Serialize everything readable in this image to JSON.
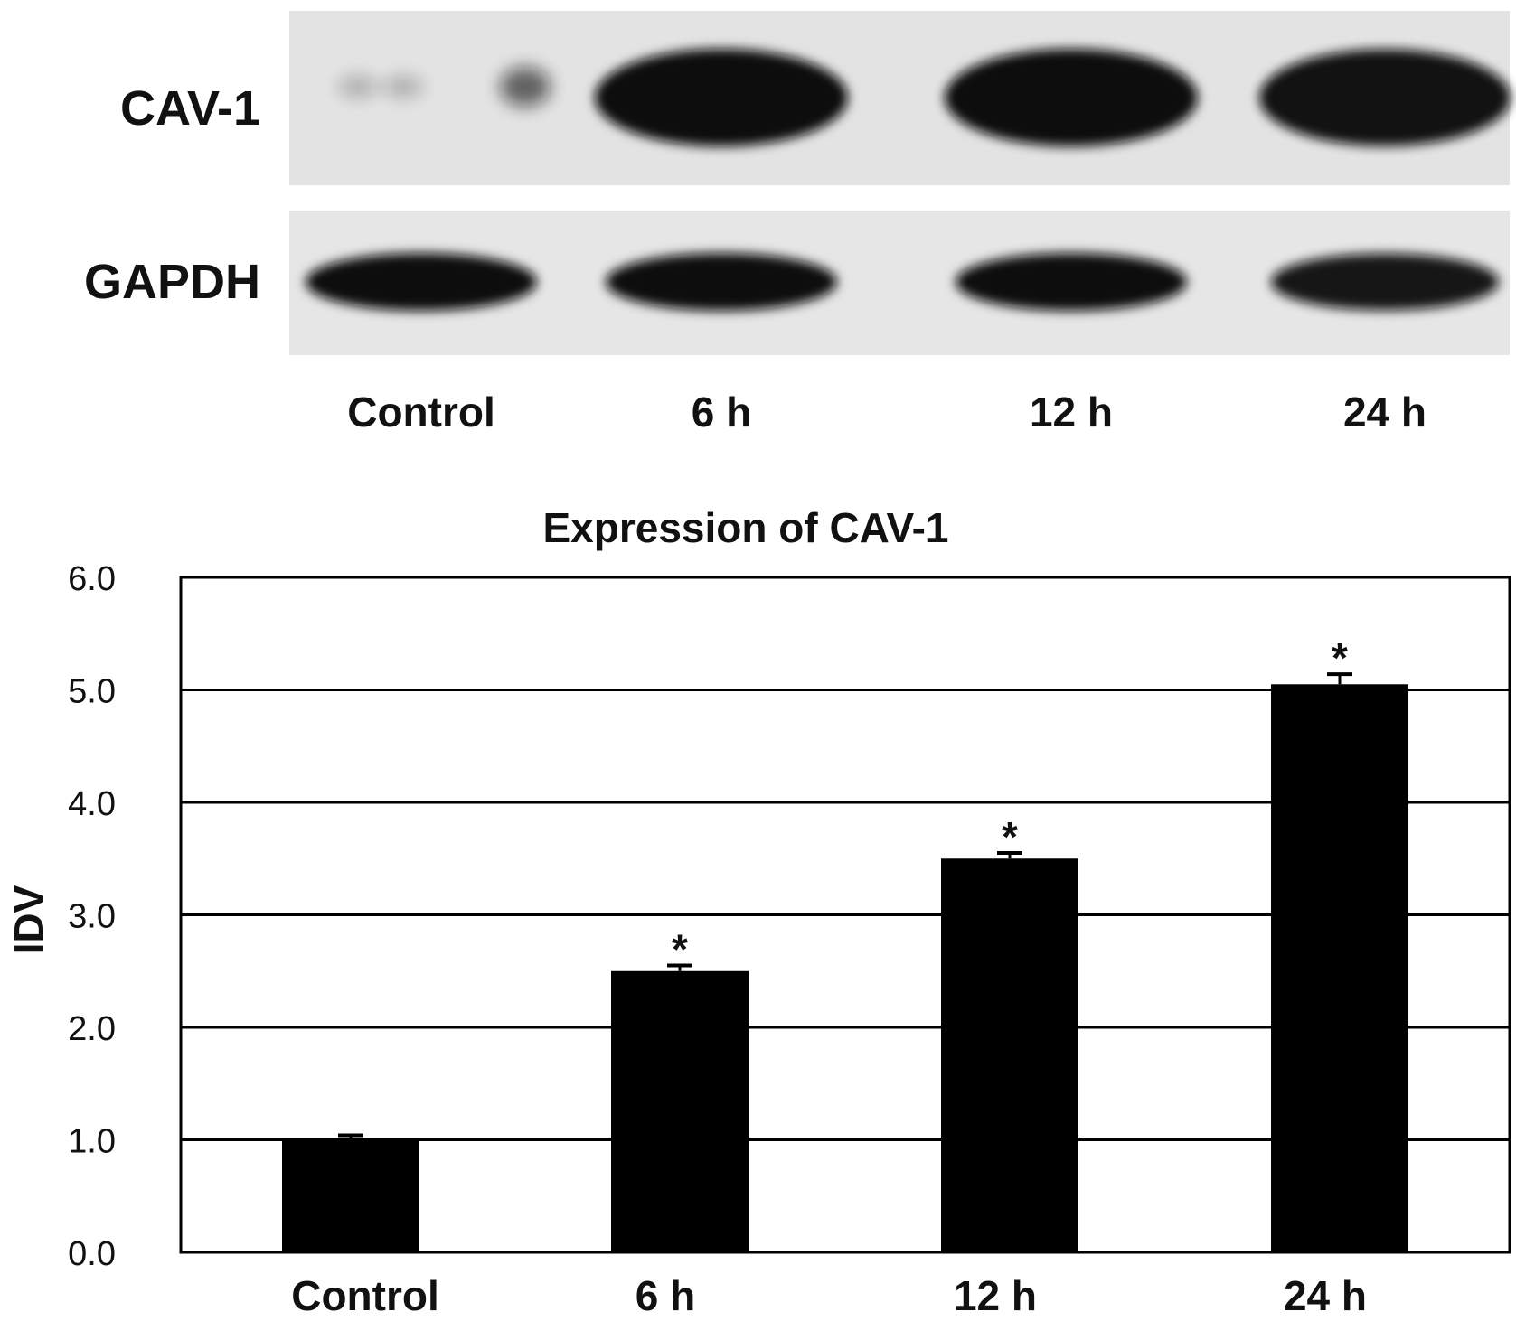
{
  "blot": {
    "rows": [
      {
        "label": "CAV-1",
        "intensity": [
          0.2,
          1.0,
          1.0,
          0.95
        ]
      },
      {
        "label": "GAPDH",
        "intensity": [
          1.0,
          1.0,
          1.0,
          0.9
        ]
      }
    ],
    "lanes": [
      "Control",
      "6 h",
      "12 h",
      "24 h"
    ]
  },
  "chart_data": {
    "type": "bar",
    "title": "Expression of CAV-1",
    "ylabel": "IDV",
    "xlabel": "",
    "categories": [
      "Control",
      "6 h",
      "12 h",
      "24 h"
    ],
    "values": [
      1.0,
      2.5,
      3.5,
      5.05
    ],
    "errors": [
      0.04,
      0.05,
      0.05,
      0.09
    ],
    "significance": [
      "",
      "*",
      "*",
      "*"
    ],
    "ylim": [
      0,
      6
    ],
    "yticks": [
      "0.0",
      "1.0",
      "2.0",
      "3.0",
      "4.0",
      "5.0",
      "6.0"
    ],
    "grid": true,
    "bar_color": "#000000"
  }
}
